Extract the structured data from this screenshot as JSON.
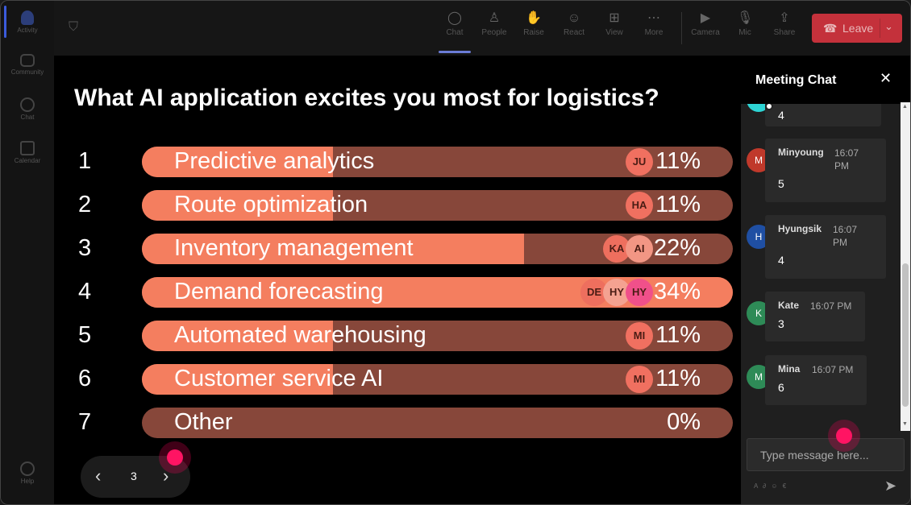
{
  "rail": {
    "items": [
      {
        "label": "Activity",
        "icon": "bell-icon"
      },
      {
        "label": "Community",
        "icon": "community-icon"
      },
      {
        "label": "Chat",
        "icon": "chat-icon"
      },
      {
        "label": "Calendar",
        "icon": "calendar-icon"
      },
      {
        "label": "Help",
        "icon": "help-icon"
      }
    ]
  },
  "toolbar": {
    "buttons": [
      {
        "label": "Chat",
        "icon": "chat-icon"
      },
      {
        "label": "People",
        "icon": "people-icon"
      },
      {
        "label": "Raise",
        "icon": "hand-icon"
      },
      {
        "label": "React",
        "icon": "smile-icon"
      },
      {
        "label": "View",
        "icon": "grid-icon"
      },
      {
        "label": "More",
        "icon": "more-icon"
      },
      {
        "label": "Camera",
        "icon": "camera-icon"
      },
      {
        "label": "Mic",
        "icon": "mic-icon"
      },
      {
        "label": "Share",
        "icon": "share-icon"
      }
    ],
    "leave_label": "Leave",
    "leave_color": "#c4313b"
  },
  "poll": {
    "question": "What AI application excites you most for logistics?",
    "options": [
      {
        "num": "1",
        "label": "Predictive analytics",
        "percent": "11%",
        "voters": [
          "JU"
        ]
      },
      {
        "num": "2",
        "label": "Route optimization",
        "percent": "11%",
        "voters": [
          "HA"
        ]
      },
      {
        "num": "3",
        "label": "Inventory management",
        "percent": "22%",
        "voters": [
          "KA",
          "AI"
        ]
      },
      {
        "num": "4",
        "label": "Demand forecasting",
        "percent": "34%",
        "voters": [
          "DE",
          "HY",
          "HY"
        ]
      },
      {
        "num": "5",
        "label": "Automated warehousing",
        "percent": "11%",
        "voters": [
          "MI"
        ]
      },
      {
        "num": "6",
        "label": "Customer service AI",
        "percent": "11%",
        "voters": [
          "MI"
        ]
      },
      {
        "num": "7",
        "label": "Other",
        "percent": "0%",
        "voters": []
      }
    ],
    "bar_fill_color": "#f47e5f",
    "bar_track_color": "#87473a"
  },
  "pager": {
    "page": "3"
  },
  "chat": {
    "title": "Meeting Chat",
    "messages": [
      {
        "name": "",
        "time": "",
        "text": "4",
        "initial": "",
        "color": "#2dd4d4"
      },
      {
        "name": "Minyoung",
        "time": "16:07 PM",
        "text": "5",
        "initial": "M",
        "color": "#c0392b"
      },
      {
        "name": "Hyungsik",
        "time": "16:07 PM",
        "text": "4",
        "initial": "H",
        "color": "#1f4fa3"
      },
      {
        "name": "Kate",
        "time": "16:07 PM",
        "text": "3",
        "initial": "K",
        "color": "#2e8b57"
      },
      {
        "name": "Mina",
        "time": "16:07 PM",
        "text": "6",
        "initial": "M",
        "color": "#2e8b57"
      }
    ],
    "input_placeholder": "Type message here..."
  }
}
